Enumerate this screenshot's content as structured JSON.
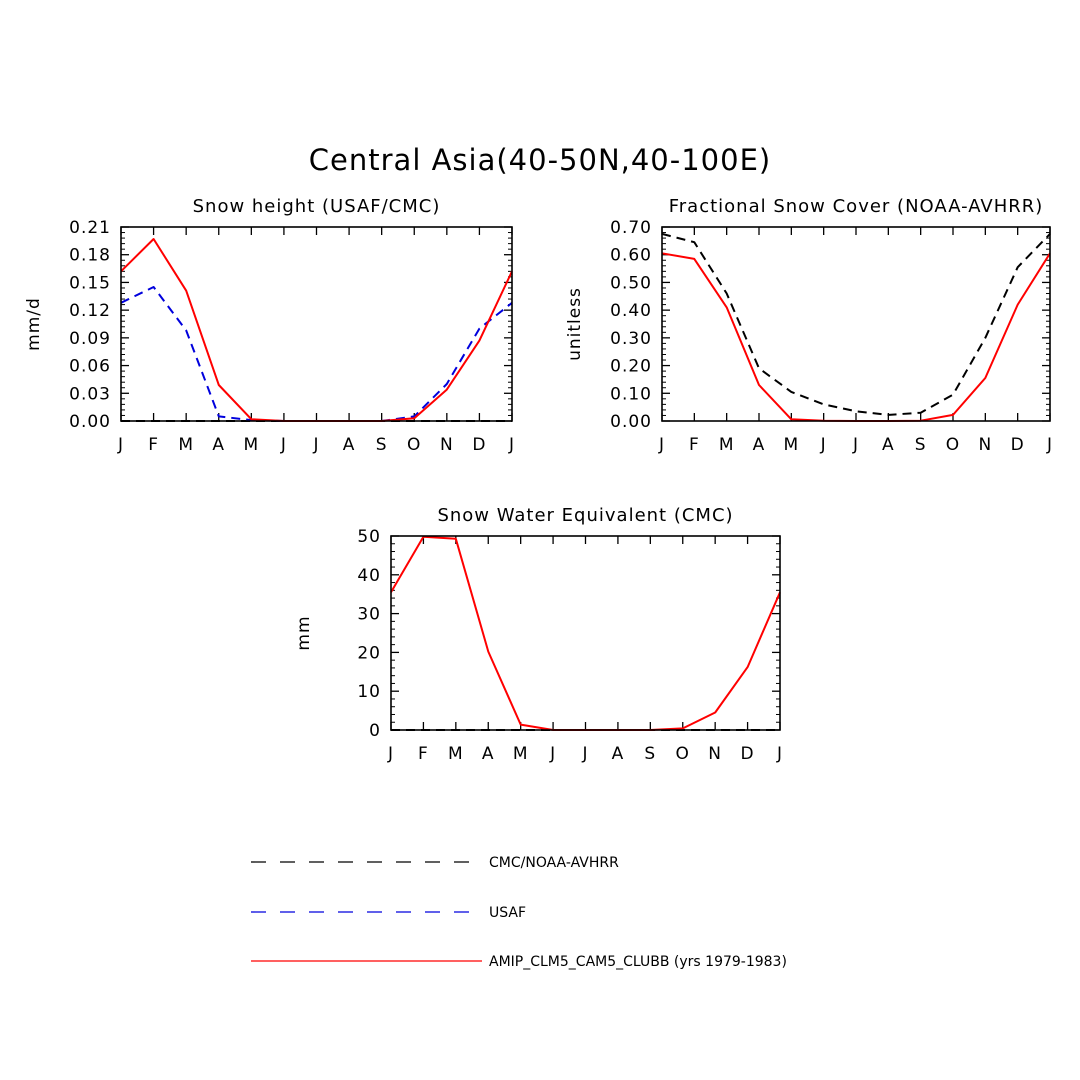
{
  "title": "Central Asia(40-50N,40-100E)",
  "legend": [
    {
      "label": "CMC/NOAA-AVHRR",
      "color": "#000000",
      "dash": "dashed"
    },
    {
      "label": "USAF",
      "color": "#0000dd",
      "dash": "dashed"
    },
    {
      "label": "AMIP_CLM5_CAM5_CLUBB (yrs 1979-1983)",
      "color": "#ff0000",
      "dash": "solid"
    }
  ],
  "chart_data": [
    {
      "type": "line",
      "title": "Snow height (USAF/CMC)",
      "xlabel": "",
      "ylabel": "mm/d",
      "categories": [
        "J",
        "F",
        "M",
        "A",
        "M",
        "J",
        "J",
        "A",
        "S",
        "O",
        "N",
        "D",
        "J"
      ],
      "ylim": [
        0,
        0.21
      ],
      "yticks": [
        "0.00",
        "0.03",
        "0.06",
        "0.09",
        "0.12",
        "0.15",
        "0.18",
        "0.21"
      ],
      "series": [
        {
          "name": "CMC/NOAA-AVHRR",
          "color": "#000000",
          "dash": "dashed",
          "values": [
            0.0,
            0.0,
            0.0,
            0.0,
            0.0,
            0.0,
            0.0,
            0.0,
            0.0,
            0.0,
            0.0,
            0.0,
            0.0
          ]
        },
        {
          "name": "USAF",
          "color": "#0000dd",
          "dash": "dashed",
          "values": [
            0.128,
            0.145,
            0.098,
            0.005,
            0.001,
            0.0,
            0.0,
            0.0,
            0.0,
            0.005,
            0.04,
            0.1,
            0.128
          ]
        },
        {
          "name": "AMIP_CLM5_CAM5_CLUBB (yrs 1979-1983)",
          "color": "#ff0000",
          "dash": "solid",
          "values": [
            0.162,
            0.197,
            0.141,
            0.039,
            0.002,
            0.0,
            0.0,
            0.0,
            0.0,
            0.003,
            0.034,
            0.087,
            0.162
          ]
        }
      ]
    },
    {
      "type": "line",
      "title": "Fractional Snow Cover (NOAA-AVHRR)",
      "xlabel": "",
      "ylabel": "unitless",
      "categories": [
        "J",
        "F",
        "M",
        "A",
        "M",
        "J",
        "J",
        "A",
        "S",
        "O",
        "N",
        "D",
        "J"
      ],
      "ylim": [
        0,
        0.7
      ],
      "yticks": [
        "0.00",
        "0.10",
        "0.20",
        "0.30",
        "0.40",
        "0.50",
        "0.60",
        "0.70"
      ],
      "series": [
        {
          "name": "CMC/NOAA-AVHRR",
          "color": "#000000",
          "dash": "dashed",
          "values": [
            0.675,
            0.645,
            0.46,
            0.19,
            0.105,
            0.06,
            0.035,
            0.022,
            0.03,
            0.095,
            0.3,
            0.555,
            0.675
          ]
        },
        {
          "name": "AMIP_CLM5_CAM5_CLUBB (yrs 1979-1983)",
          "color": "#ff0000",
          "dash": "solid",
          "values": [
            0.605,
            0.585,
            0.41,
            0.13,
            0.006,
            0.001,
            0.0,
            0.0,
            0.001,
            0.022,
            0.155,
            0.42,
            0.605
          ]
        }
      ]
    },
    {
      "type": "line",
      "title": "Snow Water Equivalent (CMC)",
      "xlabel": "",
      "ylabel": "mm",
      "categories": [
        "J",
        "F",
        "M",
        "A",
        "M",
        "J",
        "J",
        "A",
        "S",
        "O",
        "N",
        "D",
        "J"
      ],
      "ylim": [
        0,
        50
      ],
      "yticks": [
        "0",
        "10",
        "20",
        "30",
        "40",
        "50"
      ],
      "series": [
        {
          "name": "CMC/NOAA-AVHRR",
          "color": "#000000",
          "dash": "dashed",
          "values": [
            0,
            0,
            0,
            0,
            0,
            0,
            0,
            0,
            0,
            0,
            0,
            0,
            0
          ]
        },
        {
          "name": "AMIP_CLM5_CAM5_CLUBB (yrs 1979-1983)",
          "color": "#ff0000",
          "dash": "solid",
          "values": [
            35.5,
            49.8,
            49.3,
            20.2,
            1.4,
            0.0,
            0.0,
            0.0,
            0.0,
            0.4,
            4.5,
            16.2,
            35.5
          ]
        }
      ]
    }
  ]
}
